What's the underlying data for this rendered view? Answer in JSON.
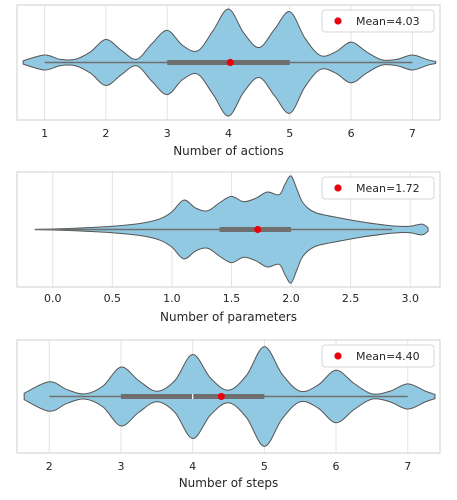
{
  "colors": {
    "violin_fill": "#92c9e2",
    "violin_edge": "#555555",
    "box": "#6f6f6f",
    "mean_marker": "#e8000b",
    "grid": "#e3e3e3",
    "frame": "#cfcfcf",
    "background": "#ffffff"
  },
  "chart_data": [
    {
      "type": "violin",
      "xlabel": "Number of actions",
      "xlim": [
        0.55,
        7.45
      ],
      "xticks": [
        1,
        2,
        3,
        4,
        5,
        6,
        7
      ],
      "tick_labels": [
        "1",
        "2",
        "3",
        "4",
        "5",
        "6",
        "7"
      ],
      "grid": "vertical",
      "legend": {
        "label": "Mean=4.03",
        "placement": "top-right"
      },
      "mean": 4.03,
      "quartiles": {
        "q1": 3,
        "median": 4,
        "q3": 5
      },
      "whiskers": [
        1,
        7
      ],
      "density": {
        "x": [
          0.65,
          1.0,
          1.25,
          1.5,
          1.75,
          2.0,
          2.25,
          2.5,
          2.75,
          3.0,
          3.25,
          3.5,
          3.75,
          4.0,
          4.25,
          4.5,
          4.75,
          5.0,
          5.25,
          5.5,
          5.75,
          6.0,
          6.25,
          6.5,
          6.75,
          7.0,
          7.25,
          7.38
        ],
        "y": [
          0.03,
          0.14,
          0.06,
          0.06,
          0.2,
          0.43,
          0.23,
          0.06,
          0.35,
          0.6,
          0.32,
          0.22,
          0.6,
          1.0,
          0.55,
          0.28,
          0.62,
          0.95,
          0.45,
          0.13,
          0.2,
          0.38,
          0.2,
          0.05,
          0.06,
          0.14,
          0.05,
          0.02
        ]
      }
    },
    {
      "type": "violin",
      "xlabel": "Number of parameters",
      "xlim": [
        -0.3,
        3.25
      ],
      "xticks": [
        0.0,
        0.5,
        1.0,
        1.5,
        2.0,
        2.5,
        3.0
      ],
      "tick_labels": [
        "0.0",
        "0.5",
        "1.0",
        "1.5",
        "2.0",
        "2.5",
        "3.0"
      ],
      "grid": "vertical",
      "legend": {
        "label": "Mean=1.72",
        "placement": "top-right"
      },
      "mean": 1.72,
      "quartiles": {
        "q1": 1.4,
        "median": 1.7,
        "q3": 2.0
      },
      "whiskers": [
        -0.15,
        2.85
      ],
      "density": {
        "x": [
          -0.15,
          0.0,
          0.25,
          0.5,
          0.75,
          0.9,
          1.0,
          1.1,
          1.2,
          1.3,
          1.4,
          1.5,
          1.6,
          1.7,
          1.8,
          1.9,
          1.95,
          2.0,
          2.05,
          2.1,
          2.2,
          2.4,
          2.6,
          2.8,
          2.9,
          3.0,
          3.1,
          3.15
        ],
        "y": [
          0.0,
          0.01,
          0.03,
          0.06,
          0.12,
          0.2,
          0.33,
          0.55,
          0.4,
          0.35,
          0.5,
          0.62,
          0.52,
          0.58,
          0.7,
          0.65,
          0.85,
          1.0,
          0.75,
          0.5,
          0.32,
          0.22,
          0.14,
          0.08,
          0.06,
          0.06,
          0.1,
          0.03
        ]
      }
    },
    {
      "type": "violin",
      "xlabel": "Number of steps",
      "xlim": [
        1.55,
        7.45
      ],
      "xticks": [
        2,
        3,
        4,
        5,
        6,
        7
      ],
      "tick_labels": [
        "2",
        "3",
        "4",
        "5",
        "6",
        "7"
      ],
      "grid": "vertical",
      "legend": {
        "label": "Mean=4.40",
        "placement": "top-right"
      },
      "mean": 4.4,
      "quartiles": {
        "q1": 3,
        "median": 4,
        "q3": 5
      },
      "whiskers": [
        2,
        7
      ],
      "density": {
        "x": [
          1.65,
          2.0,
          2.25,
          2.5,
          2.75,
          3.0,
          3.25,
          3.5,
          3.75,
          4.0,
          4.25,
          4.5,
          4.75,
          5.0,
          5.25,
          5.5,
          5.75,
          6.0,
          6.25,
          6.5,
          6.75,
          7.0,
          7.25,
          7.38
        ],
        "y": [
          0.06,
          0.28,
          0.13,
          0.05,
          0.2,
          0.56,
          0.3,
          0.1,
          0.3,
          0.8,
          0.35,
          0.12,
          0.4,
          0.95,
          0.42,
          0.1,
          0.22,
          0.5,
          0.25,
          0.05,
          0.1,
          0.24,
          0.1,
          0.04
        ]
      }
    }
  ]
}
